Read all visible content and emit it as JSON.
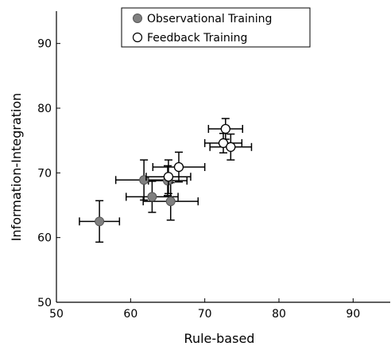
{
  "chart_data": {
    "type": "scatter",
    "xlabel": "Rule-based",
    "ylabel": "Information-Integration",
    "xlim": [
      50,
      95
    ],
    "ylim": [
      50,
      95
    ],
    "xticks": [
      50,
      60,
      70,
      80,
      90
    ],
    "yticks": [
      50,
      60,
      70,
      80,
      90
    ],
    "grid": false,
    "legend_position": "top-right",
    "series": [
      {
        "name": "Observational Training",
        "marker": "filled-circle",
        "color": "#808080",
        "points": [
          {
            "x": 55.8,
            "y": 62.5,
            "xerr": 2.7,
            "yerr": 3.2
          },
          {
            "x": 62.9,
            "y": 66.3,
            "xerr": 3.5,
            "yerr": 2.4
          },
          {
            "x": 65.4,
            "y": 65.6,
            "xerr": 3.7,
            "yerr": 2.9
          },
          {
            "x": 61.8,
            "y": 68.9,
            "xerr": 3.8,
            "yerr": 3.1
          },
          {
            "x": 65.0,
            "y": 68.8,
            "xerr": 2.6,
            "yerr": 2.3
          }
        ]
      },
      {
        "name": "Feedback Training",
        "marker": "open-circle",
        "color": "#ffffff",
        "points": [
          {
            "x": 65.1,
            "y": 69.4,
            "xerr": 3.0,
            "yerr": 2.6
          },
          {
            "x": 66.5,
            "y": 70.9,
            "xerr": 3.5,
            "yerr": 2.3
          },
          {
            "x": 72.8,
            "y": 76.8,
            "xerr": 2.3,
            "yerr": 1.6
          },
          {
            "x": 72.5,
            "y": 74.6,
            "xerr": 2.5,
            "yerr": 1.5
          },
          {
            "x": 73.5,
            "y": 74.0,
            "xerr": 2.8,
            "yerr": 2.0
          }
        ]
      }
    ]
  }
}
